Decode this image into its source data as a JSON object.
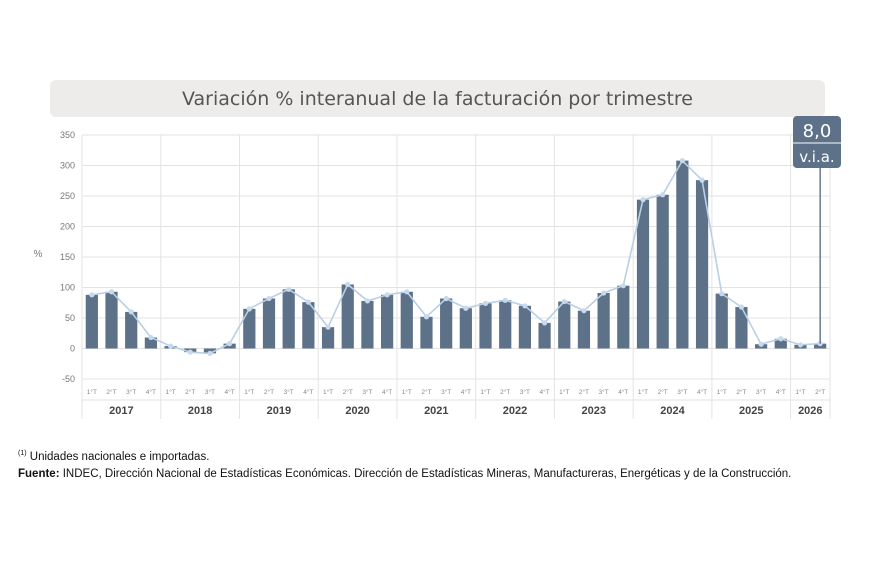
{
  "chart_data": {
    "type": "bar",
    "title": "Variación % interanual de la facturación por trimestre",
    "ylabel": "%",
    "ylim": [
      -50,
      350
    ],
    "yticks": [
      "350",
      "300",
      "250",
      "200",
      "150",
      "100",
      "50",
      "0",
      "-50"
    ],
    "years": [
      "2017",
      "2018",
      "2019",
      "2020",
      "2021",
      "2022",
      "2023",
      "2024",
      "2025",
      "2026"
    ],
    "quarter_labels": [
      "1°T",
      "2°T",
      "3°T",
      "4°T",
      "1°T",
      "2°T",
      "3°T",
      "4°T",
      "1°T",
      "2°T",
      "3°T",
      "4°T",
      "1°T",
      "2°T",
      "3°T",
      "4°T",
      "1°T",
      "2°T",
      "3°T",
      "4°T",
      "1°T",
      "2°T",
      "3°T",
      "4°T",
      "1°T",
      "2°T",
      "3°T",
      "4°T",
      "1°T",
      "2°T",
      "3°T",
      "4°T",
      "1°T",
      "2°T",
      "3°T",
      "4°T",
      "1°T",
      "2°T"
    ],
    "values": [
      88,
      93,
      60,
      18,
      4,
      -6,
      -8,
      8,
      65,
      82,
      97,
      76,
      35,
      105,
      78,
      88,
      93,
      52,
      82,
      66,
      74,
      79,
      70,
      42,
      77,
      62,
      91,
      103,
      244,
      252,
      308,
      276,
      90,
      68,
      7,
      16,
      6,
      8.0
    ],
    "series_line": true,
    "callout": {
      "value": "8,0",
      "label": "v.i.a."
    },
    "grid": true,
    "colors": {
      "bar": "#5d7189",
      "line": "#b9cfe6",
      "marker": "#c7d9ec",
      "grid": "#e3e3e3",
      "callout": "#5d7189"
    }
  },
  "notes": {
    "footnote_mark": "(1)",
    "footnote_text": "Unidades nacionales e importadas.",
    "source_label": "Fuente:",
    "source_text": "INDEC, Dirección Nacional de Estadísticas Económicas. Dirección de Estadísticas Mineras, Manufactureras, Energéticas y de la Construcción."
  }
}
